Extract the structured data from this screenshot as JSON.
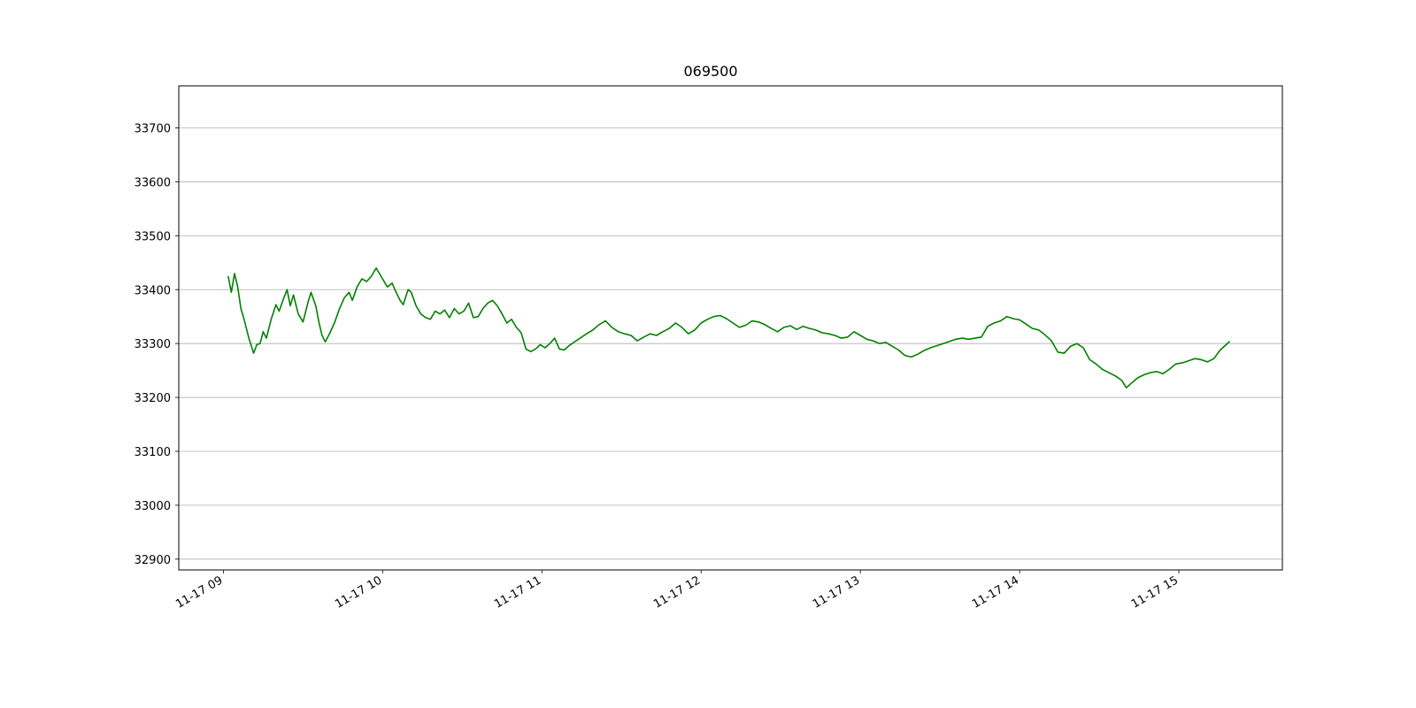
{
  "chart_data": {
    "type": "line",
    "title": "069500",
    "xlabel": "",
    "ylabel": "",
    "x_ticks": [
      "11-17 09",
      "11-17 10",
      "11-17 11",
      "11-17 12",
      "11-17 13",
      "11-17 14",
      "11-17 15"
    ],
    "x_tick_hours": [
      9,
      10,
      11,
      12,
      13,
      14,
      15
    ],
    "xlim": [
      8.72,
      15.65
    ],
    "y_ticks": [
      32900,
      33000,
      33100,
      33200,
      33300,
      33400,
      33500,
      33600,
      33700
    ],
    "ylim": [
      32880,
      33778
    ],
    "grid": "horizontal",
    "legend": "none",
    "series": [
      {
        "color": "#008000",
        "points": [
          [
            9.03,
            33425
          ],
          [
            9.05,
            33395
          ],
          [
            9.07,
            33430
          ],
          [
            9.09,
            33405
          ],
          [
            9.11,
            33365
          ],
          [
            9.13,
            33345
          ],
          [
            9.16,
            33310
          ],
          [
            9.19,
            33282
          ],
          [
            9.21,
            33298
          ],
          [
            9.23,
            33300
          ],
          [
            9.25,
            33322
          ],
          [
            9.27,
            33310
          ],
          [
            9.3,
            33345
          ],
          [
            9.33,
            33372
          ],
          [
            9.35,
            33360
          ],
          [
            9.38,
            33385
          ],
          [
            9.4,
            33400
          ],
          [
            9.42,
            33370
          ],
          [
            9.44,
            33390
          ],
          [
            9.47,
            33355
          ],
          [
            9.5,
            33340
          ],
          [
            9.53,
            33375
          ],
          [
            9.55,
            33395
          ],
          [
            9.58,
            33370
          ],
          [
            9.6,
            33340
          ],
          [
            9.62,
            33315
          ],
          [
            9.64,
            33303
          ],
          [
            9.67,
            33320
          ],
          [
            9.7,
            33340
          ],
          [
            9.73,
            33365
          ],
          [
            9.76,
            33385
          ],
          [
            9.79,
            33395
          ],
          [
            9.81,
            33380
          ],
          [
            9.84,
            33405
          ],
          [
            9.87,
            33420
          ],
          [
            9.9,
            33415
          ],
          [
            9.93,
            33425
          ],
          [
            9.96,
            33440
          ],
          [
            9.98,
            33430
          ],
          [
            10.0,
            33420
          ],
          [
            10.03,
            33405
          ],
          [
            10.06,
            33412
          ],
          [
            10.08,
            33398
          ],
          [
            10.11,
            33380
          ],
          [
            10.13,
            33372
          ],
          [
            10.16,
            33400
          ],
          [
            10.18,
            33395
          ],
          [
            10.21,
            33370
          ],
          [
            10.24,
            33355
          ],
          [
            10.27,
            33348
          ],
          [
            10.3,
            33345
          ],
          [
            10.33,
            33360
          ],
          [
            10.36,
            33355
          ],
          [
            10.39,
            33362
          ],
          [
            10.42,
            33348
          ],
          [
            10.45,
            33365
          ],
          [
            10.48,
            33355
          ],
          [
            10.51,
            33360
          ],
          [
            10.54,
            33375
          ],
          [
            10.57,
            33348
          ],
          [
            10.6,
            33350
          ],
          [
            10.63,
            33365
          ],
          [
            10.66,
            33375
          ],
          [
            10.69,
            33380
          ],
          [
            10.72,
            33370
          ],
          [
            10.75,
            33355
          ],
          [
            10.78,
            33338
          ],
          [
            10.81,
            33345
          ],
          [
            10.84,
            33330
          ],
          [
            10.87,
            33320
          ],
          [
            10.9,
            33290
          ],
          [
            10.93,
            33285
          ],
          [
            10.96,
            33290
          ],
          [
            10.99,
            33298
          ],
          [
            11.02,
            33292
          ],
          [
            11.05,
            33300
          ],
          [
            11.08,
            33310
          ],
          [
            11.11,
            33290
          ],
          [
            11.14,
            33288
          ],
          [
            11.17,
            33296
          ],
          [
            11.2,
            33302
          ],
          [
            11.24,
            33310
          ],
          [
            11.28,
            33318
          ],
          [
            11.32,
            33325
          ],
          [
            11.36,
            33335
          ],
          [
            11.4,
            33342
          ],
          [
            11.44,
            33330
          ],
          [
            11.48,
            33322
          ],
          [
            11.52,
            33318
          ],
          [
            11.56,
            33315
          ],
          [
            11.6,
            33305
          ],
          [
            11.64,
            33312
          ],
          [
            11.68,
            33318
          ],
          [
            11.72,
            33315
          ],
          [
            11.76,
            33322
          ],
          [
            11.8,
            33328
          ],
          [
            11.84,
            33338
          ],
          [
            11.88,
            33330
          ],
          [
            11.92,
            33318
          ],
          [
            11.96,
            33325
          ],
          [
            12.0,
            33338
          ],
          [
            12.04,
            33345
          ],
          [
            12.08,
            33350
          ],
          [
            12.12,
            33352
          ],
          [
            12.16,
            33346
          ],
          [
            12.2,
            33338
          ],
          [
            12.24,
            33330
          ],
          [
            12.28,
            33334
          ],
          [
            12.32,
            33342
          ],
          [
            12.36,
            33340
          ],
          [
            12.4,
            33335
          ],
          [
            12.44,
            33328
          ],
          [
            12.48,
            33322
          ],
          [
            12.52,
            33330
          ],
          [
            12.56,
            33333
          ],
          [
            12.6,
            33326
          ],
          [
            12.64,
            33332
          ],
          [
            12.68,
            33328
          ],
          [
            12.72,
            33325
          ],
          [
            12.76,
            33320
          ],
          [
            12.8,
            33318
          ],
          [
            12.84,
            33315
          ],
          [
            12.88,
            33310
          ],
          [
            12.92,
            33312
          ],
          [
            12.96,
            33322
          ],
          [
            13.0,
            33315
          ],
          [
            13.04,
            33308
          ],
          [
            13.08,
            33305
          ],
          [
            13.12,
            33300
          ],
          [
            13.16,
            33302
          ],
          [
            13.2,
            33295
          ],
          [
            13.24,
            33288
          ],
          [
            13.28,
            33278
          ],
          [
            13.32,
            33275
          ],
          [
            13.36,
            33280
          ],
          [
            13.4,
            33287
          ],
          [
            13.44,
            33292
          ],
          [
            13.48,
            33296
          ],
          [
            13.52,
            33300
          ],
          [
            13.56,
            33304
          ],
          [
            13.6,
            33308
          ],
          [
            13.64,
            33310
          ],
          [
            13.68,
            33308
          ],
          [
            13.72,
            33310
          ],
          [
            13.76,
            33312
          ],
          [
            13.8,
            33332
          ],
          [
            13.84,
            33338
          ],
          [
            13.88,
            33342
          ],
          [
            13.92,
            33350
          ],
          [
            13.96,
            33346
          ],
          [
            14.0,
            33344
          ],
          [
            14.04,
            33336
          ],
          [
            14.08,
            33328
          ],
          [
            14.12,
            33325
          ],
          [
            14.16,
            33316
          ],
          [
            14.2,
            33305
          ],
          [
            14.24,
            33284
          ],
          [
            14.28,
            33282
          ],
          [
            14.32,
            33295
          ],
          [
            14.36,
            33300
          ],
          [
            14.4,
            33292
          ],
          [
            14.44,
            33270
          ],
          [
            14.48,
            33262
          ],
          [
            14.52,
            33252
          ],
          [
            14.56,
            33246
          ],
          [
            14.6,
            33240
          ],
          [
            14.64,
            33232
          ],
          [
            14.67,
            33218
          ],
          [
            14.7,
            33226
          ],
          [
            14.74,
            33236
          ],
          [
            14.78,
            33242
          ],
          [
            14.82,
            33246
          ],
          [
            14.86,
            33248
          ],
          [
            14.9,
            33244
          ],
          [
            14.94,
            33252
          ],
          [
            14.98,
            33262
          ],
          [
            15.02,
            33264
          ],
          [
            15.06,
            33268
          ],
          [
            15.1,
            33272
          ],
          [
            15.14,
            33270
          ],
          [
            15.18,
            33266
          ],
          [
            15.22,
            33272
          ],
          [
            15.26,
            33288
          ],
          [
            15.29,
            33296
          ],
          [
            15.32,
            33304
          ]
        ]
      }
    ]
  }
}
